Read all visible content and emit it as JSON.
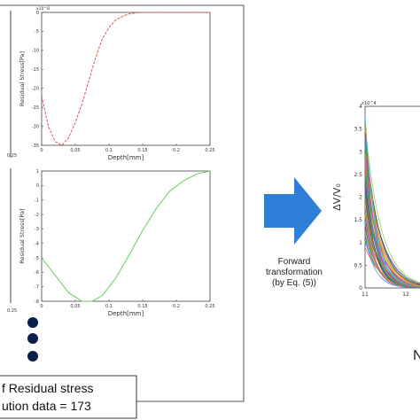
{
  "colors": {
    "curve_top": "#e0535a",
    "curve_bottom": "#5fd35a",
    "arrow": "#2f7fd8",
    "dot": "#0a1f4a"
  },
  "chart_data": [
    {
      "type": "line",
      "xlabel": "Depth[mm]",
      "ylabel": "Residual Stress[Pa]",
      "y_multiplier": "x10^8",
      "xticks": [
        "0",
        "0.05",
        "0.1",
        "0.15",
        "0.2",
        "0.25"
      ],
      "yticks": [
        "0",
        "-5",
        "-10",
        "-15",
        "-20",
        "-25",
        "-30",
        "-35"
      ],
      "xlim": [
        0,
        0.25
      ],
      "ylim": [
        -35,
        0
      ],
      "series": [
        {
          "color": "#e0535a",
          "x": [
            0,
            0.01,
            0.02,
            0.03,
            0.04,
            0.05,
            0.06,
            0.07,
            0.08,
            0.09,
            0.1,
            0.11,
            0.12,
            0.13,
            0.14,
            0.15,
            0.17,
            0.2,
            0.25
          ],
          "y": [
            -22,
            -30,
            -34,
            -35,
            -33,
            -29,
            -24,
            -18,
            -12,
            -7,
            -4,
            -2,
            -1,
            -0.4,
            -0.1,
            0,
            0,
            0,
            0
          ]
        }
      ]
    },
    {
      "type": "line",
      "xlabel": "Depth[mm]",
      "ylabel": "Residual Stress[Pa]",
      "xticks": [
        "0",
        "0.05",
        "0.1",
        "0.15",
        "0.2",
        "0.25"
      ],
      "yticks": [
        "1",
        "0",
        "-1",
        "-2",
        "-3",
        "-4",
        "-5",
        "-6",
        "-7",
        "-8"
      ],
      "xlim": [
        0,
        0.25
      ],
      "ylim": [
        -8,
        1
      ],
      "series": [
        {
          "color": "#5fd35a",
          "x": [
            0,
            0.02,
            0.04,
            0.06,
            0.075,
            0.09,
            0.11,
            0.13,
            0.15,
            0.17,
            0.19,
            0.21,
            0.23,
            0.25
          ],
          "y": [
            -5,
            -6.2,
            -7.4,
            -8,
            -8,
            -7.6,
            -6.4,
            -4.8,
            -3.1,
            -1.6,
            -0.4,
            0.3,
            0.8,
            1
          ]
        }
      ]
    },
    {
      "type": "line",
      "ylabel": "ΔV/V₀",
      "y_multiplier": "x10^4",
      "yticks": [
        "4",
        "3.5",
        "3",
        "2.5",
        "2",
        "1.5",
        "1",
        "0.5",
        "0"
      ],
      "xticks": [
        "11",
        "12"
      ],
      "ylim": [
        0,
        4
      ],
      "series_count": 60
    }
  ],
  "annotations": {
    "transform_line1": "Forward",
    "transform_line2": "transformation",
    "transform_line3": "(by Eq. (5))",
    "bottom_right_label": "N",
    "box_line1": "f Residual stress",
    "box_line2": "ution data = 173",
    "left_tick_top": "0.25",
    "left_tick_bottom": "0.25"
  }
}
